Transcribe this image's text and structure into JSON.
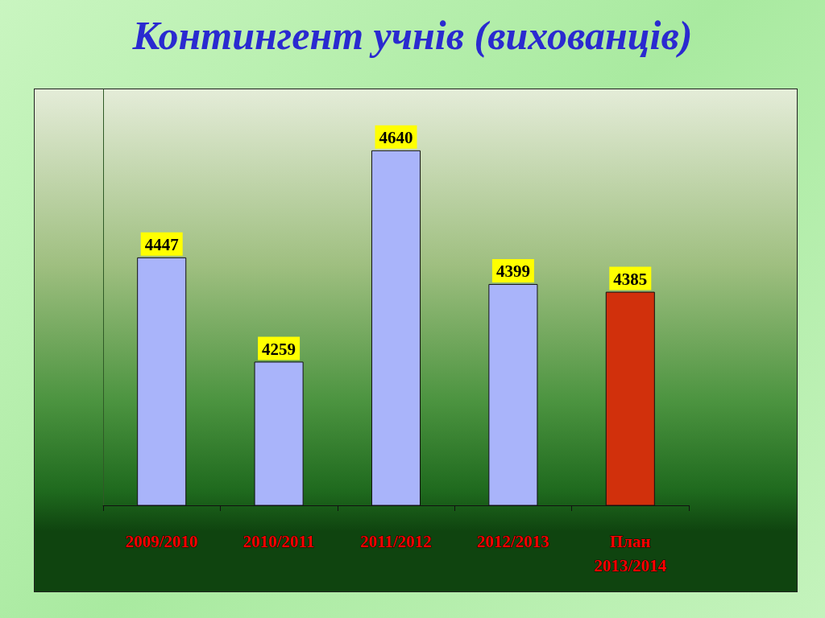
{
  "chart_data": {
    "type": "bar",
    "title": "Контингент учнів (вихованців)",
    "categories": [
      "2009/2010",
      "2010/2011",
      "2011/2012",
      "2012/2013",
      "План\n2013/2014"
    ],
    "values": [
      4447,
      4259,
      4640,
      4399,
      4385
    ],
    "colors": [
      "#a9b4fa",
      "#a9b4fa",
      "#a9b4fa",
      "#a9b4fa",
      "#d1300c"
    ],
    "ylim": [
      4000,
      4750
    ],
    "tick_labels": "x",
    "data_labels": true
  }
}
